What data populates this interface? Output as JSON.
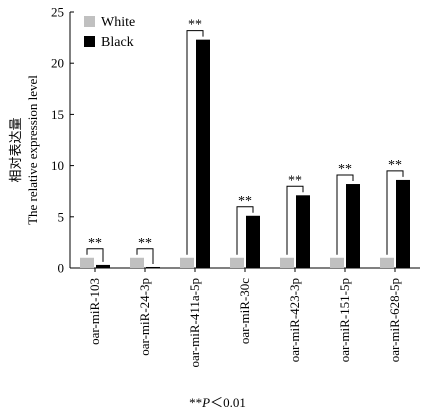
{
  "chart_data": {
    "type": "bar",
    "ylabel_cn": "相对表达量",
    "ylabel": "The relative expression level",
    "ylim": [
      0,
      25
    ],
    "yticks": [
      0,
      5,
      10,
      15,
      20,
      25
    ],
    "categories": [
      "oar-miR-103",
      "oar-miR-24-3p",
      "oar-miR-411a-5p",
      "oar-miR-30c",
      "oar-miR-423-3p",
      "oar-miR-151-5p",
      "oar-miR-628-5p"
    ],
    "series": [
      {
        "name": "White",
        "color": "#c0c0c0",
        "values": [
          1,
          1,
          1,
          1,
          1,
          1,
          1
        ]
      },
      {
        "name": "Black",
        "color": "#000000",
        "values": [
          0.3,
          0.1,
          22.3,
          5.1,
          7.1,
          8.2,
          8.6
        ]
      }
    ],
    "significance": [
      "**",
      "**",
      "**",
      "**",
      "**",
      "**",
      "**"
    ],
    "legend_position": "top-left"
  },
  "footnote": {
    "prefix": "**",
    "italic": "P",
    "suffix": "＜0.01"
  }
}
